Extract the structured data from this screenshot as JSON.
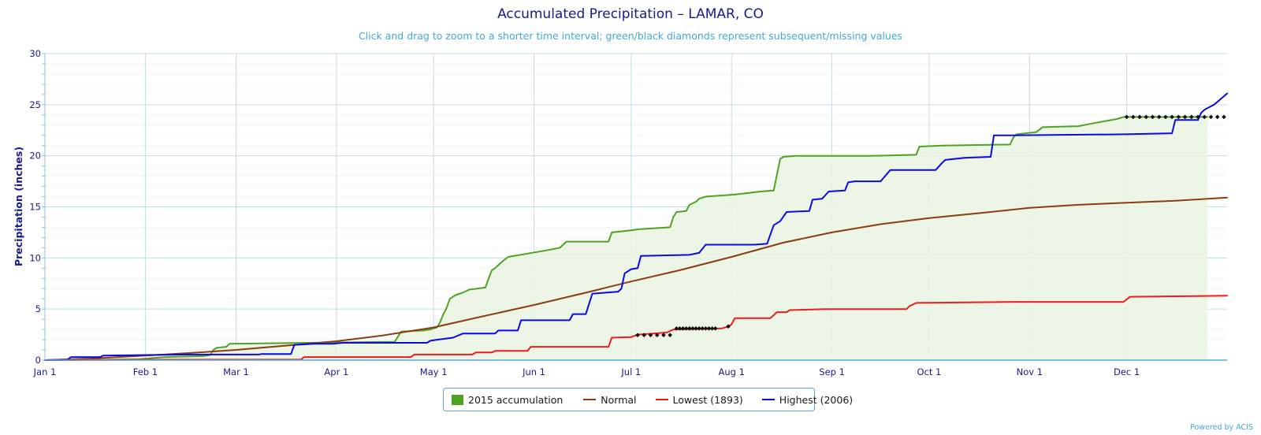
{
  "chart_data": {
    "type": "line",
    "title": "Accumulated Precipitation – LAMAR, CO",
    "subtitle": "Click and drag to zoom to a shorter time interval; green/black diamonds represent subsequent/missing values",
    "ylabel": "Precipitation (inches)",
    "xlabel": "",
    "ylim": [
      0,
      30
    ],
    "yticks": [
      0,
      5,
      10,
      15,
      20,
      25,
      30
    ],
    "xlim": [
      1,
      366
    ],
    "xticks": [
      {
        "day": 1,
        "label": "Jan 1"
      },
      {
        "day": 32,
        "label": "Feb 1"
      },
      {
        "day": 60,
        "label": "Mar 1"
      },
      {
        "day": 91,
        "label": "Apr 1"
      },
      {
        "day": 121,
        "label": "May 1"
      },
      {
        "day": 152,
        "label": "Jun 1"
      },
      {
        "day": 182,
        "label": "Jul 1"
      },
      {
        "day": 213,
        "label": "Aug 1"
      },
      {
        "day": 244,
        "label": "Sep 1"
      },
      {
        "day": 274,
        "label": "Oct 1"
      },
      {
        "day": 305,
        "label": "Nov 1"
      },
      {
        "day": 335,
        "label": "Dec 1"
      }
    ],
    "grid": true,
    "legend_position": "bottom-center",
    "series": [
      {
        "name": "2015 accumulation",
        "color": "#4da322",
        "fill": "#eaf3e2",
        "style": "area",
        "points": [
          [
            1,
            0
          ],
          [
            20,
            0.05
          ],
          [
            30,
            0.1
          ],
          [
            38,
            0.3
          ],
          [
            50,
            0.4
          ],
          [
            52,
            0.5
          ],
          [
            53,
            1.0
          ],
          [
            54,
            1.2
          ],
          [
            57,
            1.3
          ],
          [
            58,
            1.6
          ],
          [
            82,
            1.7
          ],
          [
            109,
            1.8
          ],
          [
            110,
            2.3
          ],
          [
            111,
            2.8
          ],
          [
            118,
            2.9
          ],
          [
            120,
            3.0
          ],
          [
            122,
            3.2
          ],
          [
            123,
            3.7
          ],
          [
            124,
            4.5
          ],
          [
            125,
            5.1
          ],
          [
            126,
            6.0
          ],
          [
            128,
            6.4
          ],
          [
            130,
            6.6
          ],
          [
            132,
            6.9
          ],
          [
            137,
            7.1
          ],
          [
            138,
            8.0
          ],
          [
            139,
            8.8
          ],
          [
            140,
            9.0
          ],
          [
            141,
            9.3
          ],
          [
            142,
            9.6
          ],
          [
            144,
            10.1
          ],
          [
            155,
            10.7
          ],
          [
            160,
            11.0
          ],
          [
            162,
            11.6
          ],
          [
            175,
            11.6
          ],
          [
            176,
            12.5
          ],
          [
            182,
            12.7
          ],
          [
            184,
            12.8
          ],
          [
            194,
            13.0
          ],
          [
            195,
            14.0
          ],
          [
            196,
            14.5
          ],
          [
            199,
            14.6
          ],
          [
            200,
            15.2
          ],
          [
            202,
            15.5
          ],
          [
            203,
            15.8
          ],
          [
            205,
            16.0
          ],
          [
            214,
            16.2
          ],
          [
            222,
            16.5
          ],
          [
            226,
            16.6
          ],
          [
            228,
            19.7
          ],
          [
            229,
            19.9
          ],
          [
            233,
            20.0
          ],
          [
            256,
            20.0
          ],
          [
            270,
            20.1
          ],
          [
            271,
            20.9
          ],
          [
            278,
            21.0
          ],
          [
            299,
            21.1
          ],
          [
            300,
            21.8
          ],
          [
            301,
            22.1
          ],
          [
            307,
            22.3
          ],
          [
            309,
            22.8
          ],
          [
            320,
            22.9
          ],
          [
            325,
            23.2
          ],
          [
            332,
            23.6
          ],
          [
            334,
            23.8
          ],
          [
            360,
            23.8
          ]
        ]
      },
      {
        "name": "Normal",
        "color": "#8b3d11",
        "fill": null,
        "style": "line",
        "points": [
          [
            1,
            0
          ],
          [
            15,
            0.15
          ],
          [
            32,
            0.45
          ],
          [
            46,
            0.7
          ],
          [
            60,
            1.0
          ],
          [
            75,
            1.4
          ],
          [
            91,
            1.85
          ],
          [
            105,
            2.4
          ],
          [
            121,
            3.2
          ],
          [
            135,
            4.2
          ],
          [
            152,
            5.4
          ],
          [
            168,
            6.6
          ],
          [
            182,
            7.7
          ],
          [
            197,
            8.8
          ],
          [
            213,
            10.1
          ],
          [
            229,
            11.5
          ],
          [
            244,
            12.5
          ],
          [
            259,
            13.3
          ],
          [
            274,
            13.9
          ],
          [
            290,
            14.4
          ],
          [
            305,
            14.9
          ],
          [
            320,
            15.2
          ],
          [
            335,
            15.4
          ],
          [
            350,
            15.6
          ],
          [
            366,
            15.9
          ]
        ]
      },
      {
        "name": "Lowest (1893)",
        "color": "#ee1c1c",
        "fill": null,
        "style": "line",
        "points": [
          [
            1,
            0
          ],
          [
            38,
            0.05
          ],
          [
            80,
            0.05
          ],
          [
            81,
            0.3
          ],
          [
            114,
            0.3
          ],
          [
            115,
            0.55
          ],
          [
            133,
            0.55
          ],
          [
            134,
            0.75
          ],
          [
            139,
            0.75
          ],
          [
            140,
            0.9
          ],
          [
            150,
            0.9
          ],
          [
            151,
            1.3
          ],
          [
            175,
            1.3
          ],
          [
            176,
            2.2
          ],
          [
            182,
            2.25
          ],
          [
            184,
            2.5
          ],
          [
            193,
            2.7
          ],
          [
            195,
            3.0
          ],
          [
            210,
            3.1
          ],
          [
            212,
            3.3
          ],
          [
            213,
            3.5
          ],
          [
            214,
            4.1
          ],
          [
            225,
            4.1
          ],
          [
            227,
            4.7
          ],
          [
            230,
            4.7
          ],
          [
            231,
            4.9
          ],
          [
            242,
            5.0
          ],
          [
            267,
            5.0
          ],
          [
            268,
            5.3
          ],
          [
            270,
            5.6
          ],
          [
            301,
            5.7
          ],
          [
            334,
            5.7
          ],
          [
            336,
            6.2
          ],
          [
            366,
            6.3
          ]
        ]
      },
      {
        "name": "Highest (2006)",
        "color": "#0a0ae6",
        "fill": null,
        "style": "line",
        "points": [
          [
            1,
            0
          ],
          [
            8,
            0.05
          ],
          [
            9,
            0.3
          ],
          [
            18,
            0.3
          ],
          [
            19,
            0.45
          ],
          [
            32,
            0.5
          ],
          [
            46,
            0.55
          ],
          [
            67,
            0.55
          ],
          [
            68,
            0.6
          ],
          [
            77,
            0.6
          ],
          [
            78,
            1.5
          ],
          [
            84,
            1.6
          ],
          [
            90,
            1.6
          ],
          [
            93,
            1.7
          ],
          [
            119,
            1.7
          ],
          [
            120,
            1.9
          ],
          [
            122,
            2.0
          ],
          [
            127,
            2.2
          ],
          [
            130,
            2.6
          ],
          [
            140,
            2.6
          ],
          [
            141,
            2.9
          ],
          [
            147,
            2.9
          ],
          [
            148,
            3.9
          ],
          [
            163,
            3.9
          ],
          [
            164,
            4.5
          ],
          [
            168,
            4.5
          ],
          [
            170,
            6.5
          ],
          [
            178,
            6.7
          ],
          [
            179,
            7.0
          ],
          [
            180,
            8.5
          ],
          [
            182,
            8.9
          ],
          [
            184,
            9.0
          ],
          [
            185,
            10.2
          ],
          [
            200,
            10.3
          ],
          [
            203,
            10.5
          ],
          [
            205,
            11.3
          ],
          [
            220,
            11.3
          ],
          [
            224,
            11.4
          ],
          [
            226,
            13.2
          ],
          [
            228,
            13.6
          ],
          [
            230,
            14.5
          ],
          [
            237,
            14.6
          ],
          [
            238,
            15.7
          ],
          [
            241,
            15.8
          ],
          [
            243,
            16.5
          ],
          [
            248,
            16.6
          ],
          [
            249,
            17.4
          ],
          [
            251,
            17.5
          ],
          [
            259,
            17.5
          ],
          [
            262,
            18.6
          ],
          [
            276,
            18.6
          ],
          [
            278,
            19.3
          ],
          [
            279,
            19.6
          ],
          [
            285,
            19.8
          ],
          [
            293,
            19.9
          ],
          [
            294,
            22.0
          ],
          [
            300,
            22.0
          ],
          [
            335,
            22.1
          ],
          [
            349,
            22.2
          ],
          [
            350,
            23.5
          ],
          [
            357,
            23.5
          ],
          [
            358,
            24.2
          ],
          [
            359,
            24.5
          ],
          [
            362,
            25.0
          ],
          [
            366,
            26.1
          ]
        ]
      }
    ],
    "missing_markers": [
      {
        "series": "Lowest (1893)",
        "y": 2.45,
        "days": [
          184,
          186,
          188,
          190,
          192,
          194
        ]
      },
      {
        "series": "Lowest (1893)",
        "y": 3.1,
        "days": [
          196,
          197,
          198,
          199,
          200,
          201,
          202,
          203,
          204,
          205,
          206,
          207,
          208
        ]
      },
      {
        "series": "Lowest (1893)",
        "y": 3.3,
        "days": [
          212
        ]
      },
      {
        "series": "2015 accumulation",
        "y": 23.8,
        "days": [
          335,
          337,
          339,
          341,
          343,
          345,
          347,
          349,
          351,
          353,
          355,
          357,
          359,
          361,
          363,
          365
        ]
      }
    ]
  },
  "legend": {
    "items": [
      {
        "label": "2015 accumulation",
        "color": "#4da322"
      },
      {
        "label": "Normal",
        "color": "#8b3d11"
      },
      {
        "label": "Lowest (1893)",
        "color": "#ee1c1c"
      },
      {
        "label": "Highest (2006)",
        "color": "#0a0ae6"
      }
    ]
  },
  "credit": "Powered by ACIS"
}
